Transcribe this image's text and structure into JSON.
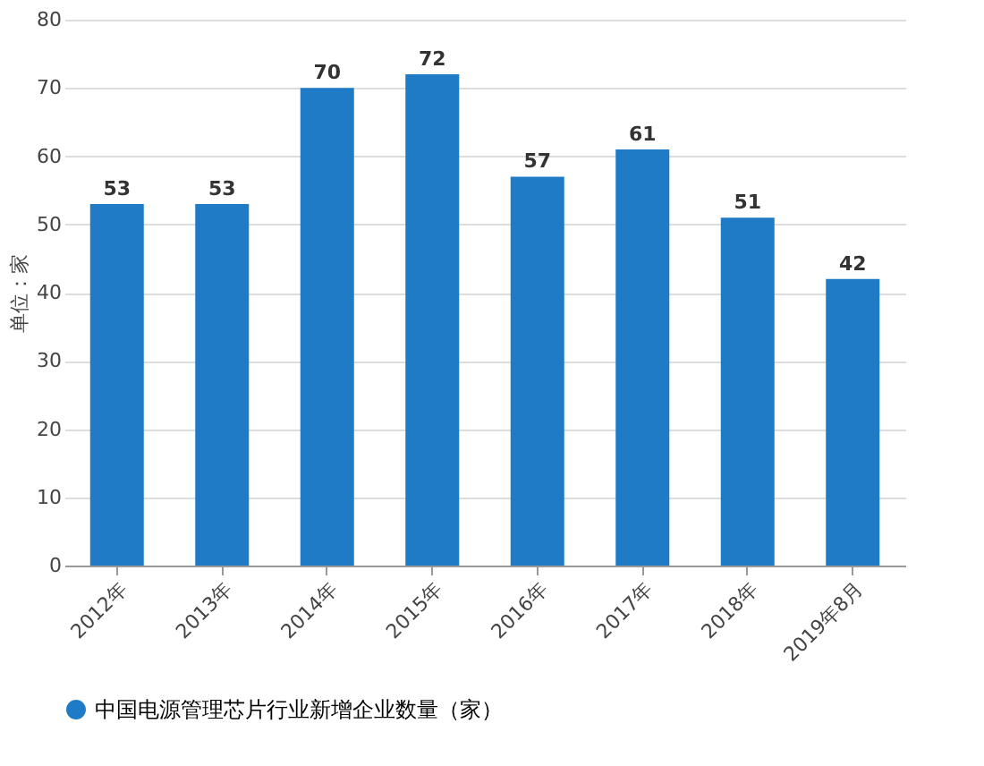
{
  "chart_data": {
    "type": "bar",
    "ylabel": "单位：家",
    "categories": [
      "2012年",
      "2013年",
      "2014年",
      "2015年",
      "2016年",
      "2017年",
      "2018年",
      "2019年8月"
    ],
    "series": [
      {
        "name": "中国电源管理芯片行业新增企业数量（家）",
        "color": "#1f7bc6",
        "values": [
          53,
          53,
          70,
          72,
          57,
          61,
          51,
          42
        ]
      }
    ],
    "ylim": [
      0,
      80
    ],
    "yticks": [
      0,
      10,
      20,
      30,
      40,
      50,
      60,
      70,
      80
    ],
    "grid": "y",
    "legend": "bottom",
    "data_labels": true
  }
}
